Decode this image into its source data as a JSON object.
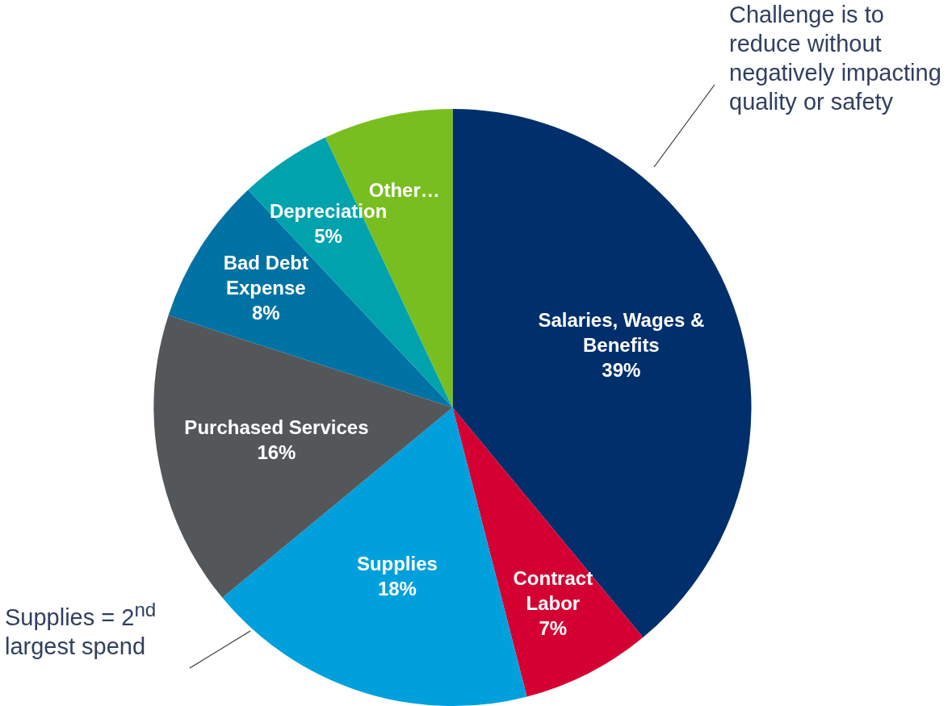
{
  "chart_data": {
    "type": "pie",
    "categories": [
      "Salaries, Wages & Benefits",
      "Contract Labor",
      "Supplies",
      "Purchased Services",
      "Bad Debt Expense",
      "Depreciation",
      "Other…"
    ],
    "values": [
      39,
      7,
      18,
      16,
      8,
      5,
      7
    ],
    "value_labels": [
      "39%",
      "7%",
      "18%",
      "16%",
      "8%",
      "5%",
      null
    ],
    "colors": [
      "#002f6c",
      "#d50032",
      "#00a0dd",
      "#54575a",
      "#0072a3",
      "#00a3ad",
      "#78be20"
    ],
    "legend": false,
    "annotations": [
      "Challenge is to reduce without negatively impacting quality or safety",
      "Supplies = 2$^{nd}$ largest spend"
    ]
  }
}
